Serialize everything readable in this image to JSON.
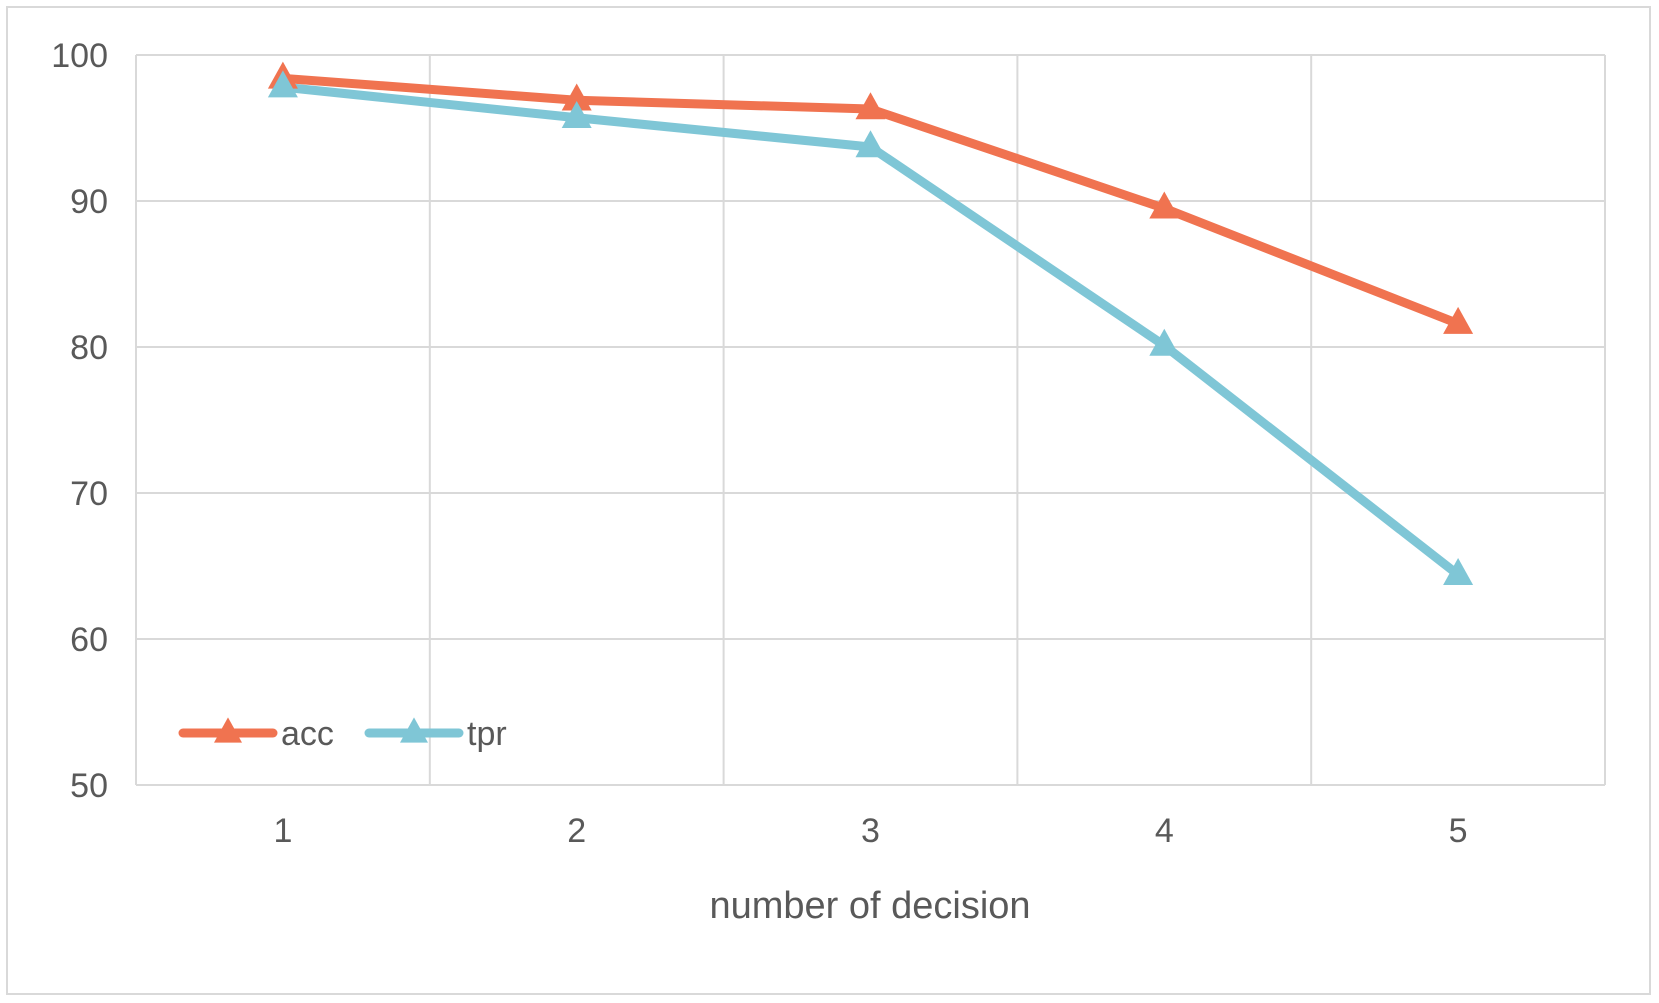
{
  "chart_data": {
    "type": "line",
    "title": "",
    "xlabel": "number of decision",
    "ylabel": "",
    "categories": [
      "1",
      "2",
      "3",
      "4",
      "5"
    ],
    "ylim": [
      50,
      100
    ],
    "yticks": [
      50,
      60,
      70,
      80,
      90,
      100
    ],
    "grid": true,
    "legend_position": "bottom-left-inside",
    "series": [
      {
        "name": "acc",
        "color": "#f07350",
        "marker": "triangle",
        "values": [
          98.4,
          96.9,
          96.3,
          89.5,
          81.6
        ]
      },
      {
        "name": "tpr",
        "color": "#7fc6d6",
        "marker": "triangle",
        "values": [
          97.8,
          95.7,
          93.7,
          80.1,
          64.4
        ]
      }
    ]
  }
}
